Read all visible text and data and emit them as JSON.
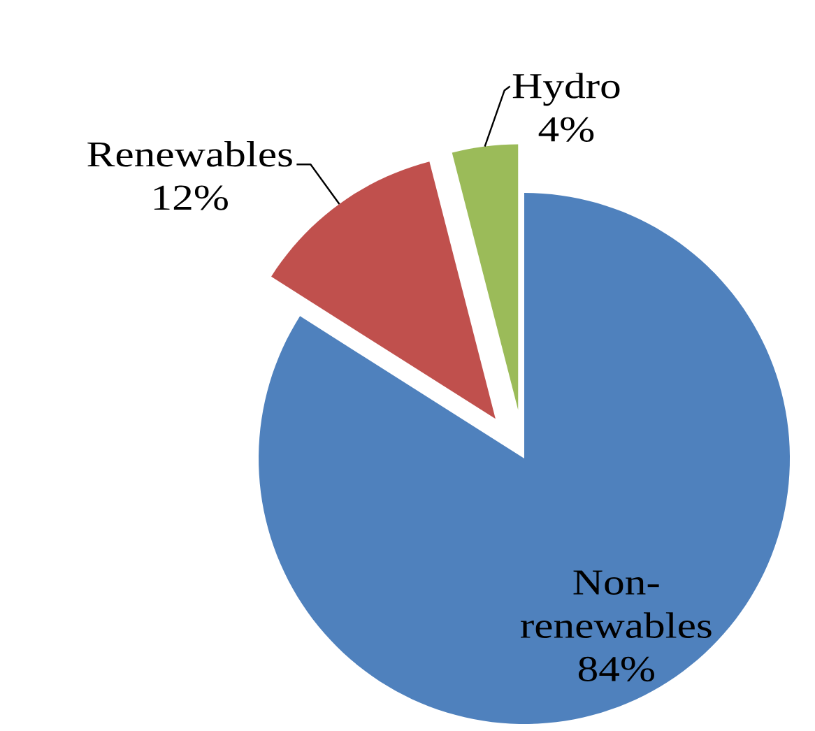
{
  "chart_data": {
    "type": "pie",
    "categories": [
      "Non-renewables",
      "Renewables",
      "Hydro"
    ],
    "values": [
      84,
      12,
      4
    ],
    "colors": [
      "#4f81bd",
      "#c0504d",
      "#9bbb59"
    ],
    "value_labels": [
      "84%",
      "12%",
      "4%"
    ]
  }
}
